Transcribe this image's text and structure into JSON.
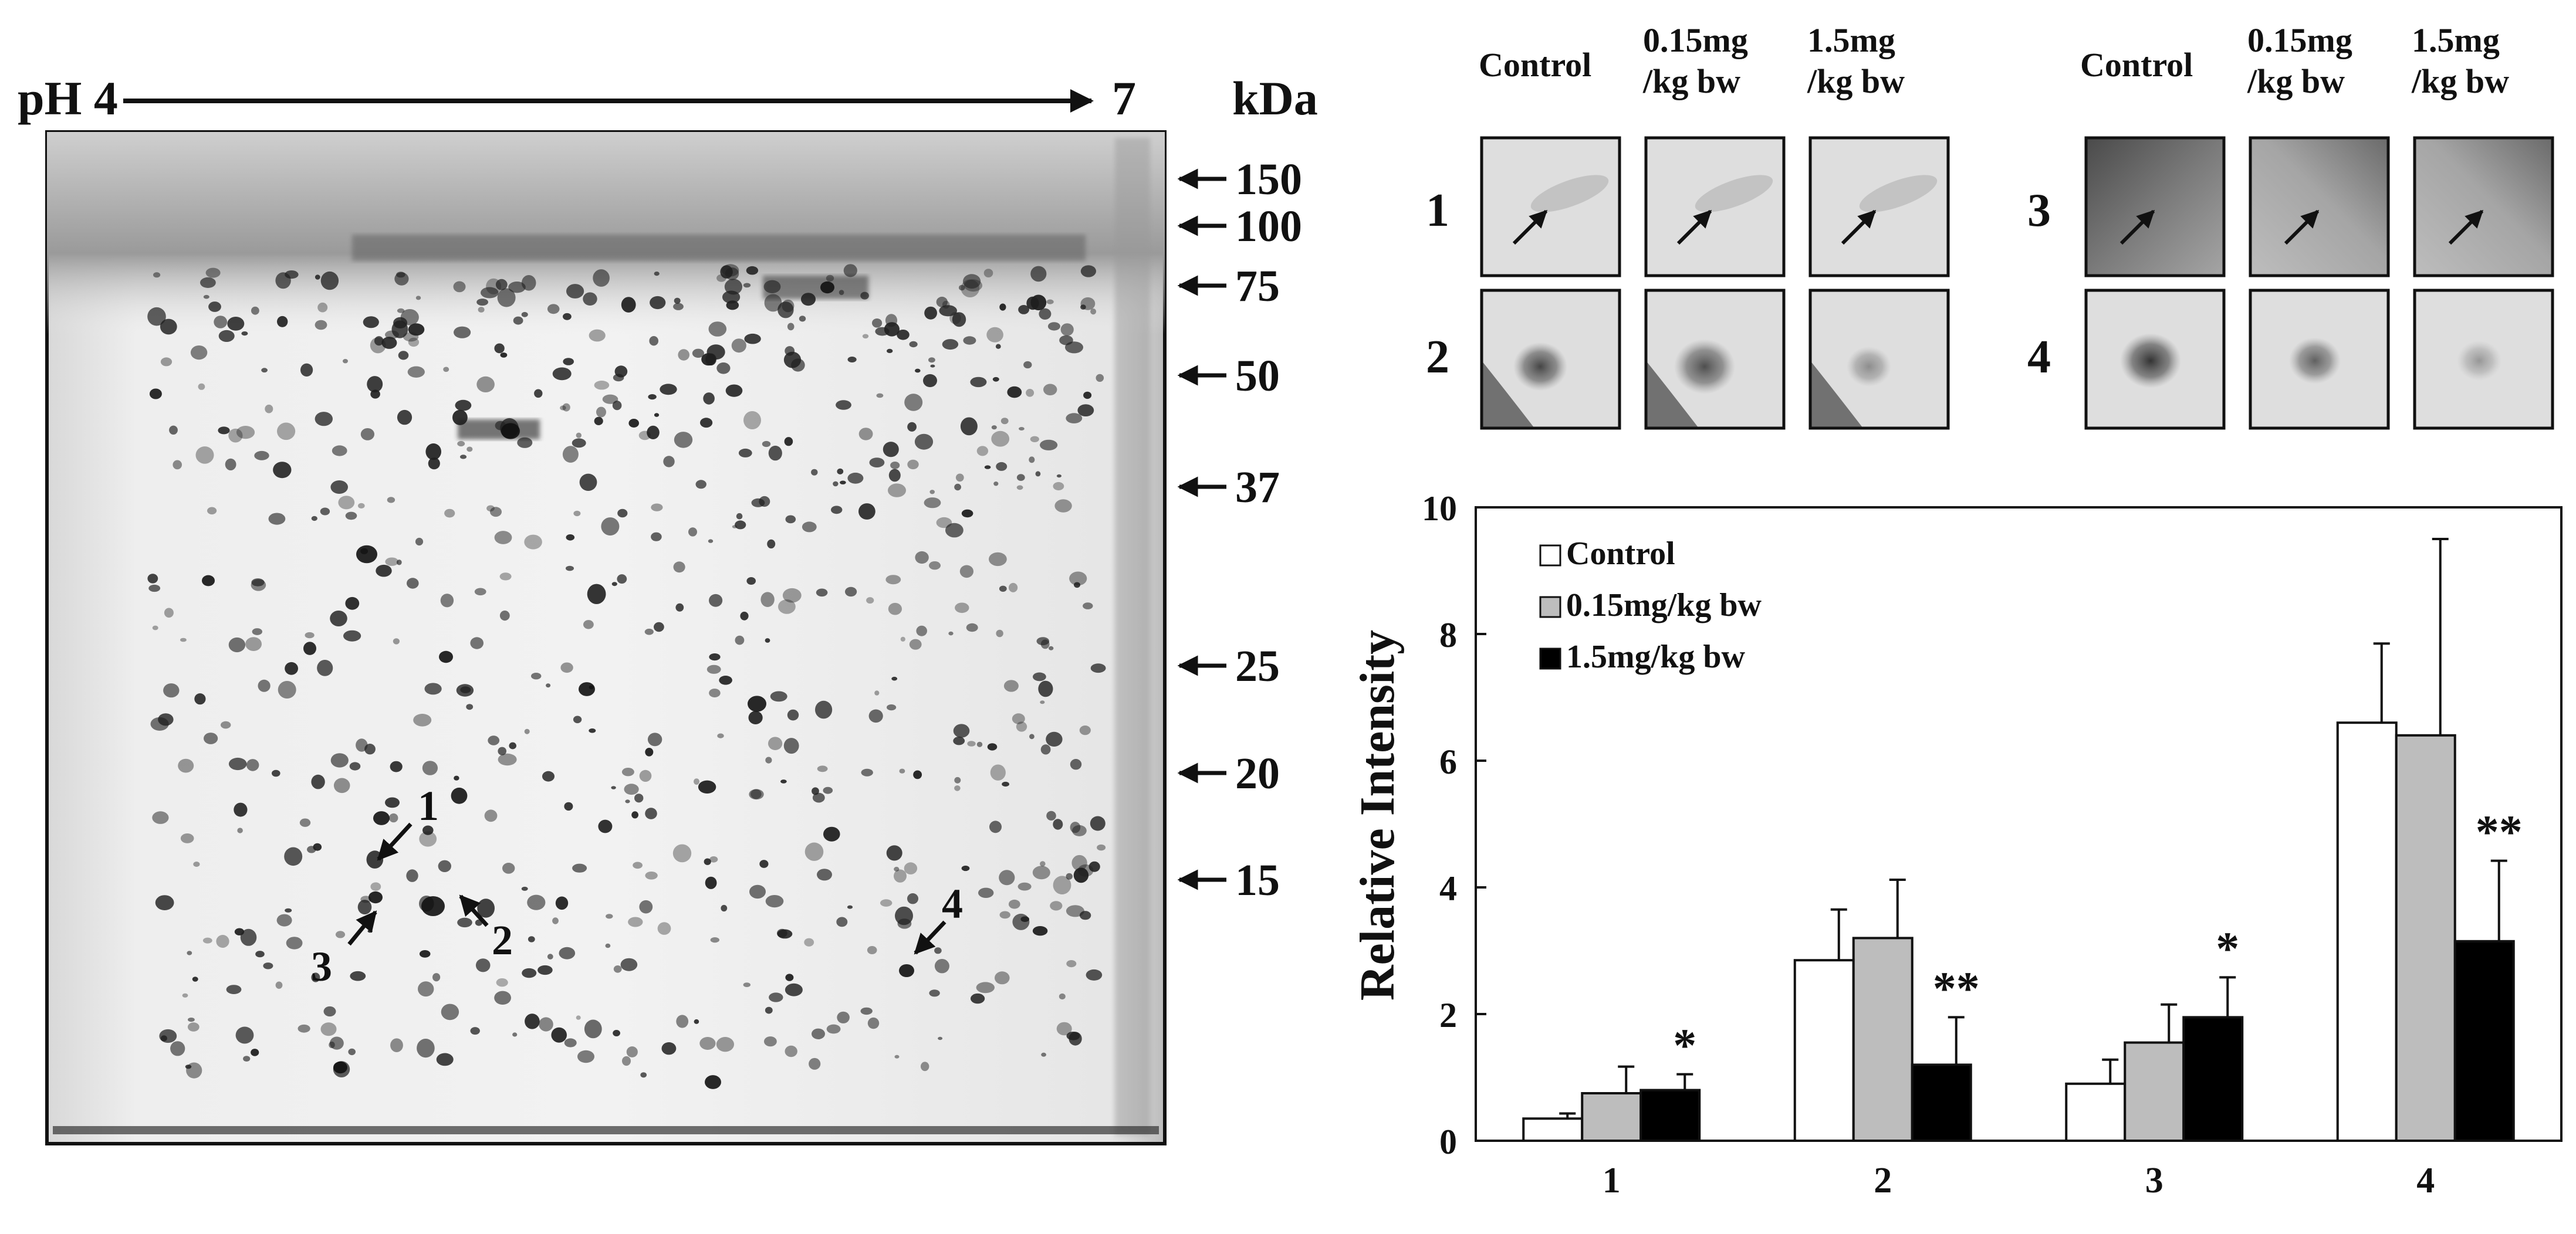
{
  "gel": {
    "ph_start": "pH 4",
    "ph_end": "7",
    "mw_unit": "kDa",
    "markers": [
      "150",
      "100",
      "75",
      "50",
      "37",
      "25",
      "20",
      "15"
    ],
    "spot_labels": [
      "1",
      "2",
      "3",
      "4"
    ]
  },
  "insets": {
    "column_headers": [
      "Control",
      "0.15mg\n/kg bw",
      "1.5mg\n/kg bw"
    ],
    "rows_left": [
      "1",
      "2"
    ],
    "rows_right": [
      "3",
      "4"
    ]
  },
  "chart_data": {
    "type": "bar",
    "categories": [
      "1",
      "2",
      "3",
      "4"
    ],
    "series": [
      {
        "name": "Control",
        "values": [
          0.35,
          2.85,
          0.9,
          6.6
        ],
        "errors": [
          0.08,
          0.8,
          0.38,
          1.25
        ],
        "color": "#ffffff"
      },
      {
        "name": "0.15mg/kg bw",
        "values": [
          0.75,
          3.2,
          1.55,
          6.4
        ],
        "errors": [
          0.42,
          0.92,
          0.6,
          3.1
        ],
        "color": "#bdbdbd"
      },
      {
        "name": "1.5mg/kg bw",
        "values": [
          0.8,
          1.2,
          1.95,
          3.15
        ],
        "errors": [
          0.25,
          0.75,
          0.63,
          1.27
        ],
        "color": "#000000"
      }
    ],
    "significance": [
      {
        "category": "1",
        "series": "1.5mg/kg bw",
        "mark": "*"
      },
      {
        "category": "2",
        "series": "1.5mg/kg bw",
        "mark": "**"
      },
      {
        "category": "3",
        "series": "1.5mg/kg bw",
        "mark": "*"
      },
      {
        "category": "4",
        "series": "1.5mg/kg bw",
        "mark": "**"
      }
    ],
    "ylabel": "Relative Intensity",
    "xlabel": "",
    "ylim": [
      0,
      10
    ],
    "yticks": [
      "0",
      "2",
      "4",
      "6",
      "8",
      "10"
    ],
    "legend_position": "top-left",
    "grid": false
  }
}
